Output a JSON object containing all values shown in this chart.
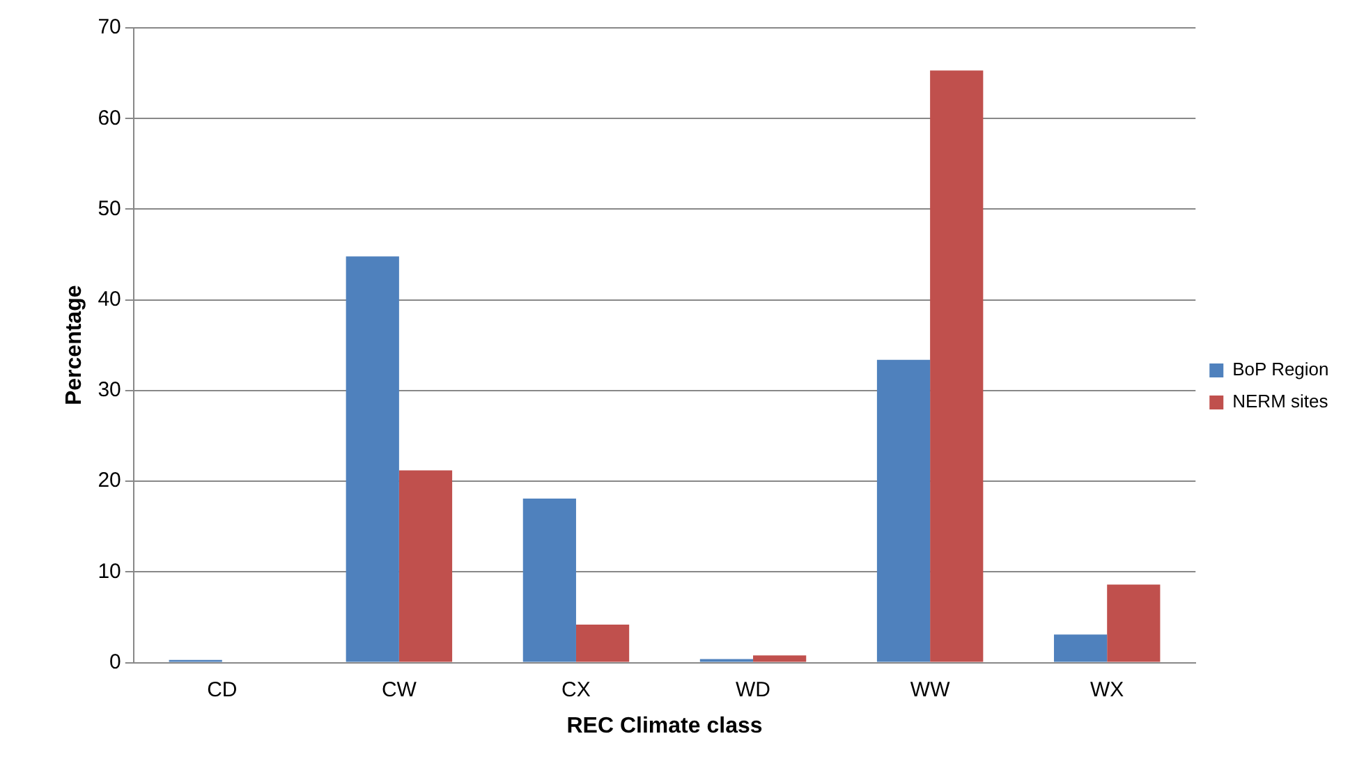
{
  "chart_data": {
    "type": "bar",
    "xlabel": "REC Climate class",
    "ylabel": "Percentage",
    "categories": [
      "CD",
      "CW",
      "CX",
      "WD",
      "WW",
      "WX"
    ],
    "series": [
      {
        "name": "BoP Region",
        "color": "#4f81bd",
        "values": [
          0.3,
          44.8,
          18.1,
          0.4,
          33.4,
          3.1
        ]
      },
      {
        "name": "NERM sites",
        "color": "#c0504d",
        "values": [
          0,
          21.2,
          4.2,
          0.8,
          65.3,
          8.6
        ]
      }
    ],
    "ylim": [
      0,
      70
    ],
    "yticks": [
      0,
      10,
      20,
      30,
      40,
      50,
      60,
      70
    ],
    "grid": "y",
    "legend": "right"
  }
}
